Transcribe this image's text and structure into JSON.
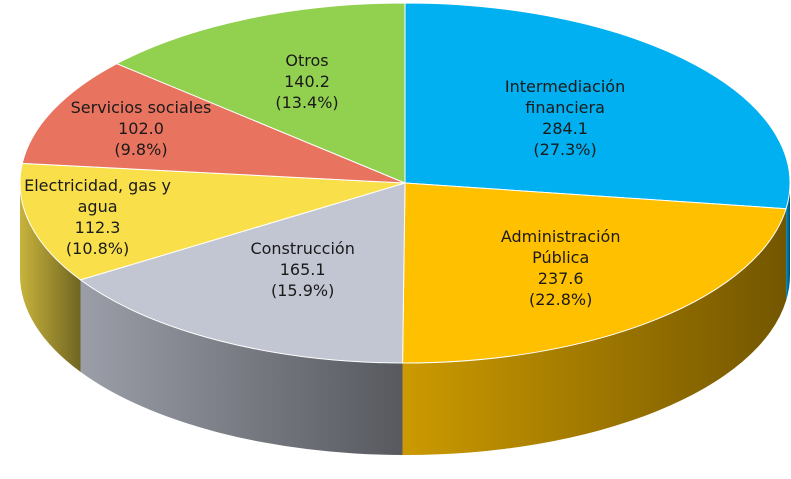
{
  "chart_data": {
    "type": "pie3d",
    "categories": [
      "Intermediación financiera",
      "Administración Pública",
      "Construcción",
      "Electricidad, gas y agua",
      "Servicios sociales",
      "Otros"
    ],
    "values": [
      284.1,
      237.6,
      165.1,
      112.3,
      102.0,
      140.2
    ],
    "value_labels": [
      "284.1",
      "237.6",
      "165.1",
      "112.3",
      "102.0",
      "140.2"
    ],
    "percents": [
      27.3,
      22.8,
      15.9,
      10.8,
      9.8,
      13.4
    ],
    "percent_labels": [
      "(27.3%)",
      "(22.8%)",
      "(15.9%)",
      "(10.8%)",
      "(9.8%)",
      "(13.4%)"
    ],
    "colors": [
      "#00b0f0",
      "#ffc000",
      "#c2c5d2",
      "#f9e04b",
      "#e8735f",
      "#92d050"
    ]
  }
}
